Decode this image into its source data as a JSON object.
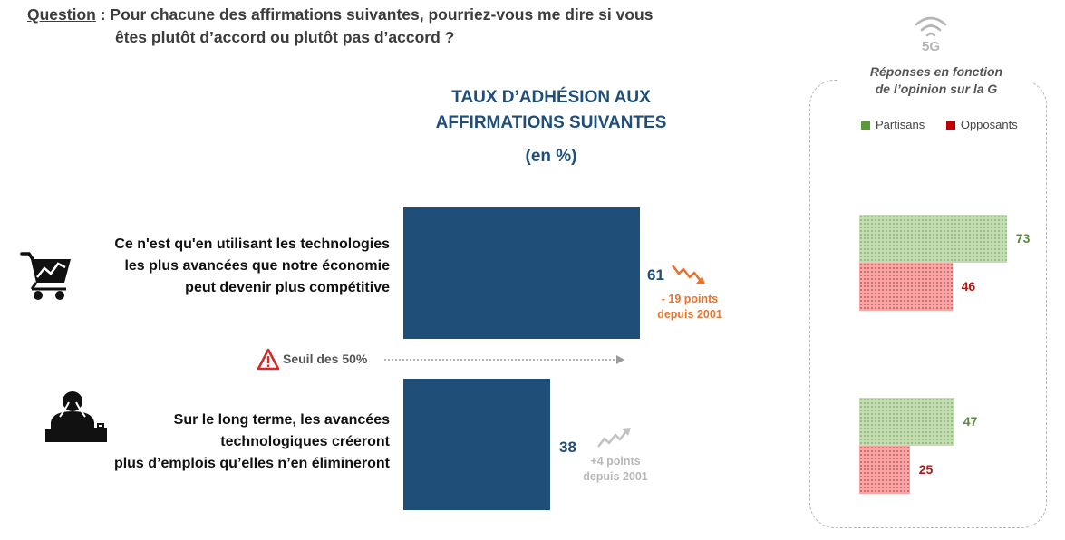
{
  "question": {
    "label": "Question",
    "line1": " : Pour chacune des affirmations suivantes, pourriez-vous me dire si vous",
    "line2": "êtes plutôt d’accord ou plutôt pas d’accord ?"
  },
  "main_title": {
    "line1": "TAUX D’ADHÉSION AUX",
    "line2": "AFFIRMATIONS SUIVANTES",
    "subtitle": "(en %)"
  },
  "threshold_label": "Seuil des 50%",
  "side_panel": {
    "icon_label": "5G",
    "title_line1": "Réponses en fonction",
    "title_line2": "de l’opinion sur la  G"
  },
  "colors": {
    "main_bar": "#1f4e79",
    "partisans": "#5a9a3a",
    "opposants": "#c00000",
    "decline": "#e8742b",
    "increase": "#b8b8b8"
  },
  "chart_data": [
    {
      "type": "bar",
      "orientation": "horizontal",
      "title": "TAUX D’ADHÉSION AUX AFFIRMATIONS SUIVANTES",
      "subtitle": "(en %)",
      "categories": [
        [
          "Ce n'est qu'en utilisant les technologies",
          "les plus avancées que notre économie",
          "peut devenir plus compétitive"
        ],
        [
          "Sur le long terme, les avancées",
          "technologiques créeront",
          "plus d’emplois qu’elles n’en élimineront"
        ]
      ],
      "values": [
        61,
        38
      ],
      "value_labels": [
        "61",
        "38"
      ],
      "changes": [
        {
          "line1": "- 19 points",
          "line2": "depuis 2001",
          "direction": "down"
        },
        {
          "line1": "+4 points",
          "line2": "depuis 2001",
          "direction": "up"
        }
      ],
      "threshold": 50,
      "xlim": [
        0,
        100
      ]
    },
    {
      "type": "bar",
      "orientation": "horizontal",
      "series": [
        {
          "name": "Partisans",
          "values": [
            73,
            47
          ]
        },
        {
          "name": "Opposants",
          "values": [
            46,
            25
          ]
        }
      ],
      "xlim": [
        0,
        100
      ],
      "legend": "top"
    }
  ]
}
